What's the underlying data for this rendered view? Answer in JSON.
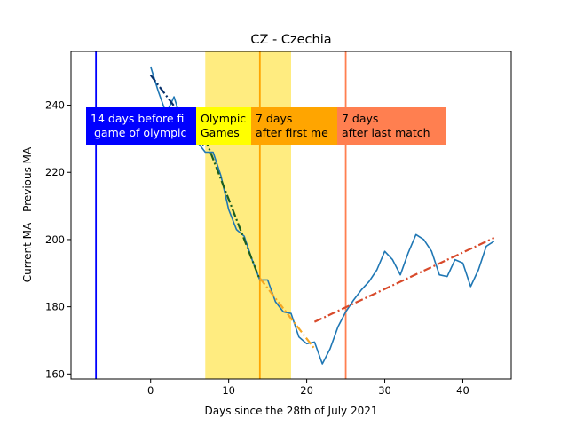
{
  "chart_data": {
    "type": "line",
    "title": "CZ - Czechia",
    "xlabel": "Days since the 28th of July 2021",
    "ylabel": "Current MA - Previous MA",
    "xlim": [
      -10.2,
      46.2
    ],
    "ylim": [
      158.5,
      256
    ],
    "xticks": [
      0,
      10,
      20,
      30,
      40
    ],
    "yticks": [
      160,
      180,
      200,
      220,
      240
    ],
    "grid": false,
    "legend": "none",
    "series": [
      {
        "color": "#1f77b4",
        "x": [
          0,
          1,
          2,
          3,
          4,
          5,
          6,
          7,
          8,
          9,
          10,
          11,
          12,
          13,
          14,
          15,
          16,
          17,
          18,
          19,
          20,
          21,
          22,
          23,
          24,
          25,
          26,
          27,
          28,
          29,
          30,
          31,
          32,
          33,
          34,
          35,
          36,
          37,
          38,
          39,
          40,
          41,
          42,
          43,
          44
        ],
        "y": [
          251.5,
          244,
          237.5,
          242.5,
          235,
          234,
          229,
          226,
          226,
          219,
          209,
          203,
          201,
          194,
          188,
          188,
          181.5,
          178.5,
          178,
          171,
          169,
          169.5,
          163,
          167.5,
          174,
          178.5,
          182,
          185,
          187.5,
          191,
          196.5,
          194,
          189.5,
          196,
          201.5,
          200,
          196.5,
          189.5,
          189,
          194,
          193,
          186,
          191,
          198,
          199.5
        ]
      }
    ],
    "fits": [
      {
        "color": "#08306b",
        "style": "dash-dot",
        "x": [
          0,
          7
        ],
        "y": [
          249,
          227.5
        ]
      },
      {
        "color": "#1b5e20",
        "style": "dash-dot",
        "x": [
          7,
          14
        ],
        "y": [
          230,
          188
        ]
      },
      {
        "color": "#f5a623",
        "style": "dash-dot",
        "x": [
          14,
          21
        ],
        "y": [
          188.5,
          167.5
        ]
      },
      {
        "color": "#d84a2b",
        "style": "dash-dot",
        "x": [
          21,
          44
        ],
        "y": [
          175.5,
          200.5
        ]
      }
    ],
    "vlines": [
      {
        "x": -7,
        "color": "#0000ff"
      },
      {
        "x": 14,
        "color": "#ffa500"
      },
      {
        "x": 25,
        "color": "#ff7f50"
      }
    ],
    "spans": [
      {
        "x0": 7,
        "x1": 18,
        "color": "#ffec80"
      }
    ],
    "annotations": [
      {
        "lines": [
          "14 days before fi",
          " game of olympic"
        ],
        "box_color": "#0000ff",
        "text_color": "#ffffff"
      },
      {
        "lines": [
          "Olympic",
          "Games"
        ],
        "box_color": "#ffff00",
        "text_color": "#000000"
      },
      {
        "lines": [
          "7 days",
          "after first me"
        ],
        "box_color": "#ffa500",
        "text_color": "#000000"
      },
      {
        "lines": [
          "7 days",
          "after last match"
        ],
        "box_color": "#ff7f50",
        "text_color": "#000000"
      }
    ]
  }
}
